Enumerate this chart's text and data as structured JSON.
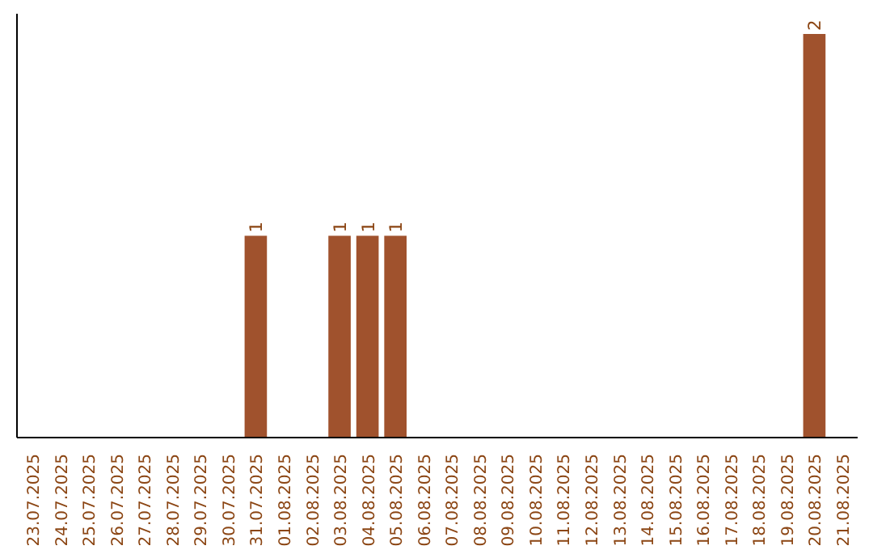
{
  "chart_data": {
    "type": "bar",
    "categories": [
      "23.07.2025",
      "24.07.2025",
      "25.07.2025",
      "26.07.2025",
      "27.07.2025",
      "28.07.2025",
      "29.07.2025",
      "30.07.2025",
      "31.07.2025",
      "01.08.2025",
      "02.08.2025",
      "03.08.2025",
      "04.08.2025",
      "05.08.2025",
      "06.08.2025",
      "07.08.2025",
      "08.08.2025",
      "09.08.2025",
      "10.08.2025",
      "11.08.2025",
      "12.08.2025",
      "13.08.2025",
      "14.08.2025",
      "15.08.2025",
      "16.08.2025",
      "17.08.2025",
      "18.08.2025",
      "19.08.2025",
      "20.08.2025",
      "21.08.2025"
    ],
    "values": [
      0,
      0,
      0,
      0,
      0,
      0,
      0,
      0,
      1,
      0,
      0,
      1,
      1,
      1,
      0,
      0,
      0,
      0,
      0,
      0,
      0,
      0,
      0,
      0,
      0,
      0,
      0,
      0,
      2,
      0
    ],
    "value_labels": [
      null,
      null,
      null,
      null,
      null,
      null,
      null,
      null,
      "1",
      null,
      null,
      "1",
      "1",
      "1",
      null,
      null,
      null,
      null,
      null,
      null,
      null,
      null,
      null,
      null,
      null,
      null,
      null,
      null,
      "2",
      null
    ],
    "color": "#a0522d",
    "ylim": [
      0,
      2.1
    ],
    "tick_labels": "x",
    "grid": false
  }
}
